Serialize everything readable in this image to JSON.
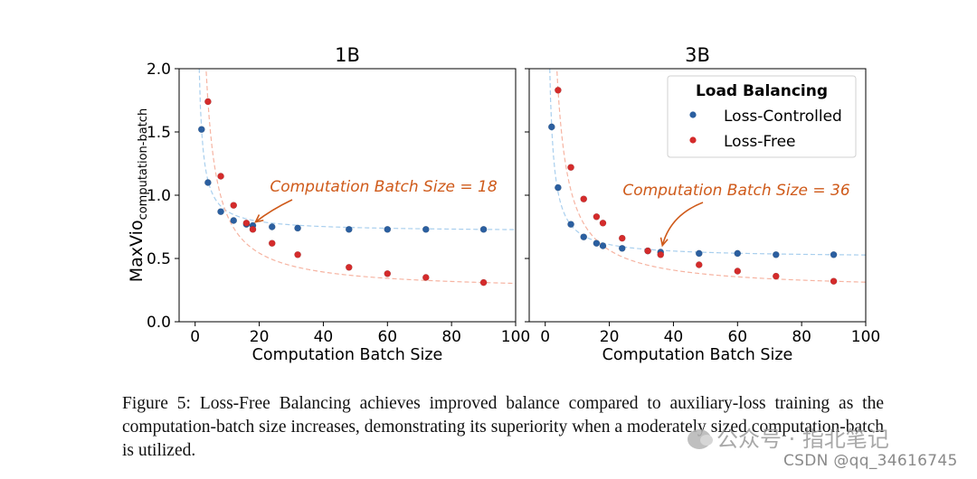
{
  "chart_data": [
    {
      "type": "scatter",
      "title": "1B",
      "xlabel": "Computation Batch Size",
      "ylabel": "MaxVio",
      "ylabel_sub": "computation-batch",
      "xlim": [
        -5,
        100
      ],
      "ylim": [
        0.0,
        2.0
      ],
      "xticks": [
        0,
        20,
        40,
        60,
        80,
        100
      ],
      "yticks": [
        0.0,
        0.5,
        1.0,
        1.5,
        2.0
      ],
      "ytick_labels": [
        "0.0",
        "0.5",
        "1.0",
        "1.5",
        "2.0"
      ],
      "grid": false,
      "series": [
        {
          "name": "Loss-Controlled",
          "color": "#2b5fa0",
          "x": [
            2,
            4,
            8,
            12,
            16,
            18,
            24,
            32,
            48,
            60,
            72,
            90
          ],
          "y": [
            1.52,
            1.1,
            0.87,
            0.8,
            0.77,
            0.76,
            0.75,
            0.74,
            0.73,
            0.73,
            0.73,
            0.73
          ]
        },
        {
          "name": "Loss-Free",
          "color": "#d42b2b",
          "x": [
            4,
            8,
            12,
            16,
            18,
            24,
            32,
            48,
            60,
            72,
            90
          ],
          "y": [
            1.74,
            1.15,
            0.92,
            0.78,
            0.73,
            0.62,
            0.53,
            0.43,
            0.38,
            0.35,
            0.31
          ]
        }
      ],
      "annotation": {
        "text": "Computation Batch Size = 18",
        "x": 18,
        "y": 0.76,
        "color": "#cf5a1a"
      }
    },
    {
      "type": "scatter",
      "title": "3B",
      "xlabel": "Computation Batch Size",
      "xlim": [
        -5,
        100
      ],
      "ylim": [
        0.0,
        2.0
      ],
      "xticks": [
        0,
        20,
        40,
        60,
        80,
        100
      ],
      "grid": false,
      "series": [
        {
          "name": "Loss-Controlled",
          "color": "#2b5fa0",
          "x": [
            2,
            4,
            8,
            12,
            16,
            18,
            24,
            32,
            36,
            48,
            60,
            72,
            90
          ],
          "y": [
            1.54,
            1.06,
            0.77,
            0.67,
            0.62,
            0.6,
            0.58,
            0.56,
            0.55,
            0.54,
            0.54,
            0.53,
            0.53
          ]
        },
        {
          "name": "Loss-Free",
          "color": "#d42b2b",
          "x": [
            4,
            8,
            12,
            16,
            18,
            24,
            32,
            36,
            48,
            60,
            72,
            90
          ],
          "y": [
            1.83,
            1.22,
            0.97,
            0.83,
            0.78,
            0.66,
            0.56,
            0.53,
            0.45,
            0.4,
            0.36,
            0.32
          ]
        }
      ],
      "annotation": {
        "text": "Computation Batch Size = 36",
        "x": 36,
        "y": 0.56,
        "color": "#cf5a1a"
      },
      "legend": {
        "title": "Load Balancing",
        "placement": "top-right"
      }
    }
  ],
  "caption": "Figure 5: Loss-Free Balancing achieves improved balance compared to auxiliary-loss training as the computation-batch size increases, demonstrating its superiority when a moderately sized computation-batch is utilized.",
  "watermark": {
    "line1": "公众号 · 指北笔记",
    "line2": "CSDN @qq_34616745"
  }
}
